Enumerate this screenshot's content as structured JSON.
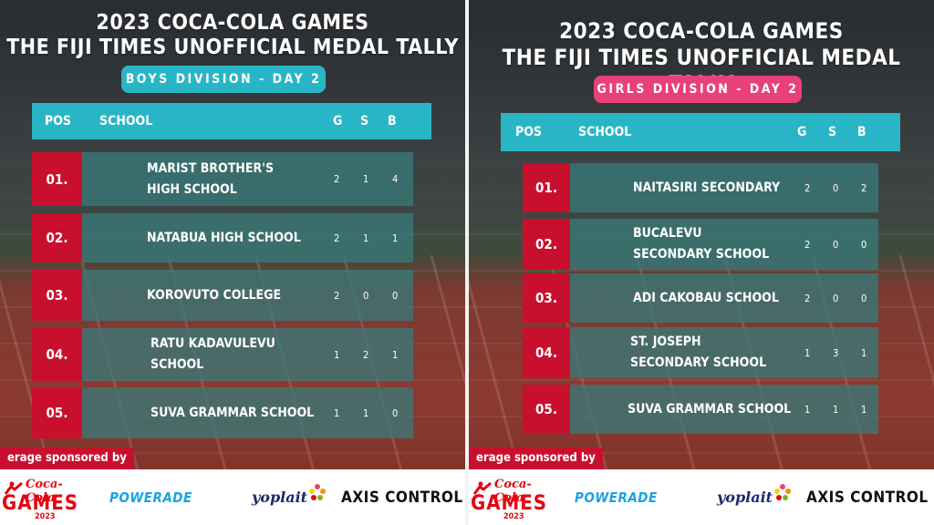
{
  "panels": [
    {
      "title_line1": "2023 COCA-COLA GAMES",
      "title_line2": "THE FIJI TIMES UNOFFICIAL MEDAL TALLY",
      "division": "BOYS DIVISION - DAY 2",
      "division_color": "#28b6c6",
      "header": {
        "pos": "POS",
        "school": "SCHOOL",
        "g": "G",
        "s": "S",
        "b": "B"
      },
      "rows": [
        {
          "pos": "01.",
          "school": "MARIST BROTHER'S HIGH SCHOOL",
          "g": "2",
          "s": "1",
          "b": "4"
        },
        {
          "pos": "02.",
          "school": "NATABUA HIGH SCHOOL",
          "g": "2",
          "s": "1",
          "b": "1"
        },
        {
          "pos": "03.",
          "school": "KOROVUTO COLLEGE",
          "g": "2",
          "s": "0",
          "b": "0"
        },
        {
          "pos": "04.",
          "school": "RATU KADAVULEVU SCHOOL",
          "g": "1",
          "s": "2",
          "b": "1"
        },
        {
          "pos": "05.",
          "school": "SUVA GRAMMAR SCHOOL",
          "g": "1",
          "s": "1",
          "b": "0"
        }
      ],
      "sponsor_tag": "erage sponsored by"
    },
    {
      "title_line1": "2023 COCA-COLA GAMES",
      "title_line2": "THE FIJI TIMES UNOFFICIAL MEDAL TALLY",
      "division": "GIRLS DIVISION - DAY 2",
      "division_color": "#e8417a",
      "header": {
        "pos": "POS",
        "school": "SCHOOL",
        "g": "G",
        "s": "S",
        "b": "B"
      },
      "rows": [
        {
          "pos": "01.",
          "school": "NAITASIRI SECONDARY",
          "g": "2",
          "s": "0",
          "b": "2"
        },
        {
          "pos": "02.",
          "school": "BUCALEVU SECONDARY SCHOOL",
          "g": "2",
          "s": "0",
          "b": "0"
        },
        {
          "pos": "03.",
          "school": "ADI CAKOBAU SCHOOL",
          "g": "2",
          "s": "0",
          "b": "0"
        },
        {
          "pos": "04.",
          "school": "ST. JOSEPH SECONDARY SCHOOL",
          "g": "1",
          "s": "3",
          "b": "1"
        },
        {
          "pos": "05.",
          "school": "SUVA GRAMMAR SCHOOL",
          "g": "1",
          "s": "1",
          "b": "1"
        }
      ],
      "sponsor_tag": "erage sponsored by"
    }
  ],
  "sponsors": {
    "coca_cola_script": "Coca-Cola",
    "games": "GAMES",
    "year": "2023",
    "powerade": "POWERADE",
    "yoplait": "yoplait",
    "axis": "AXIS CONTROL"
  },
  "colors": {
    "accent_teal": "#28b6c6",
    "accent_red": "#c8102e",
    "accent_pink": "#e8417a",
    "row_teal": "#387878"
  }
}
